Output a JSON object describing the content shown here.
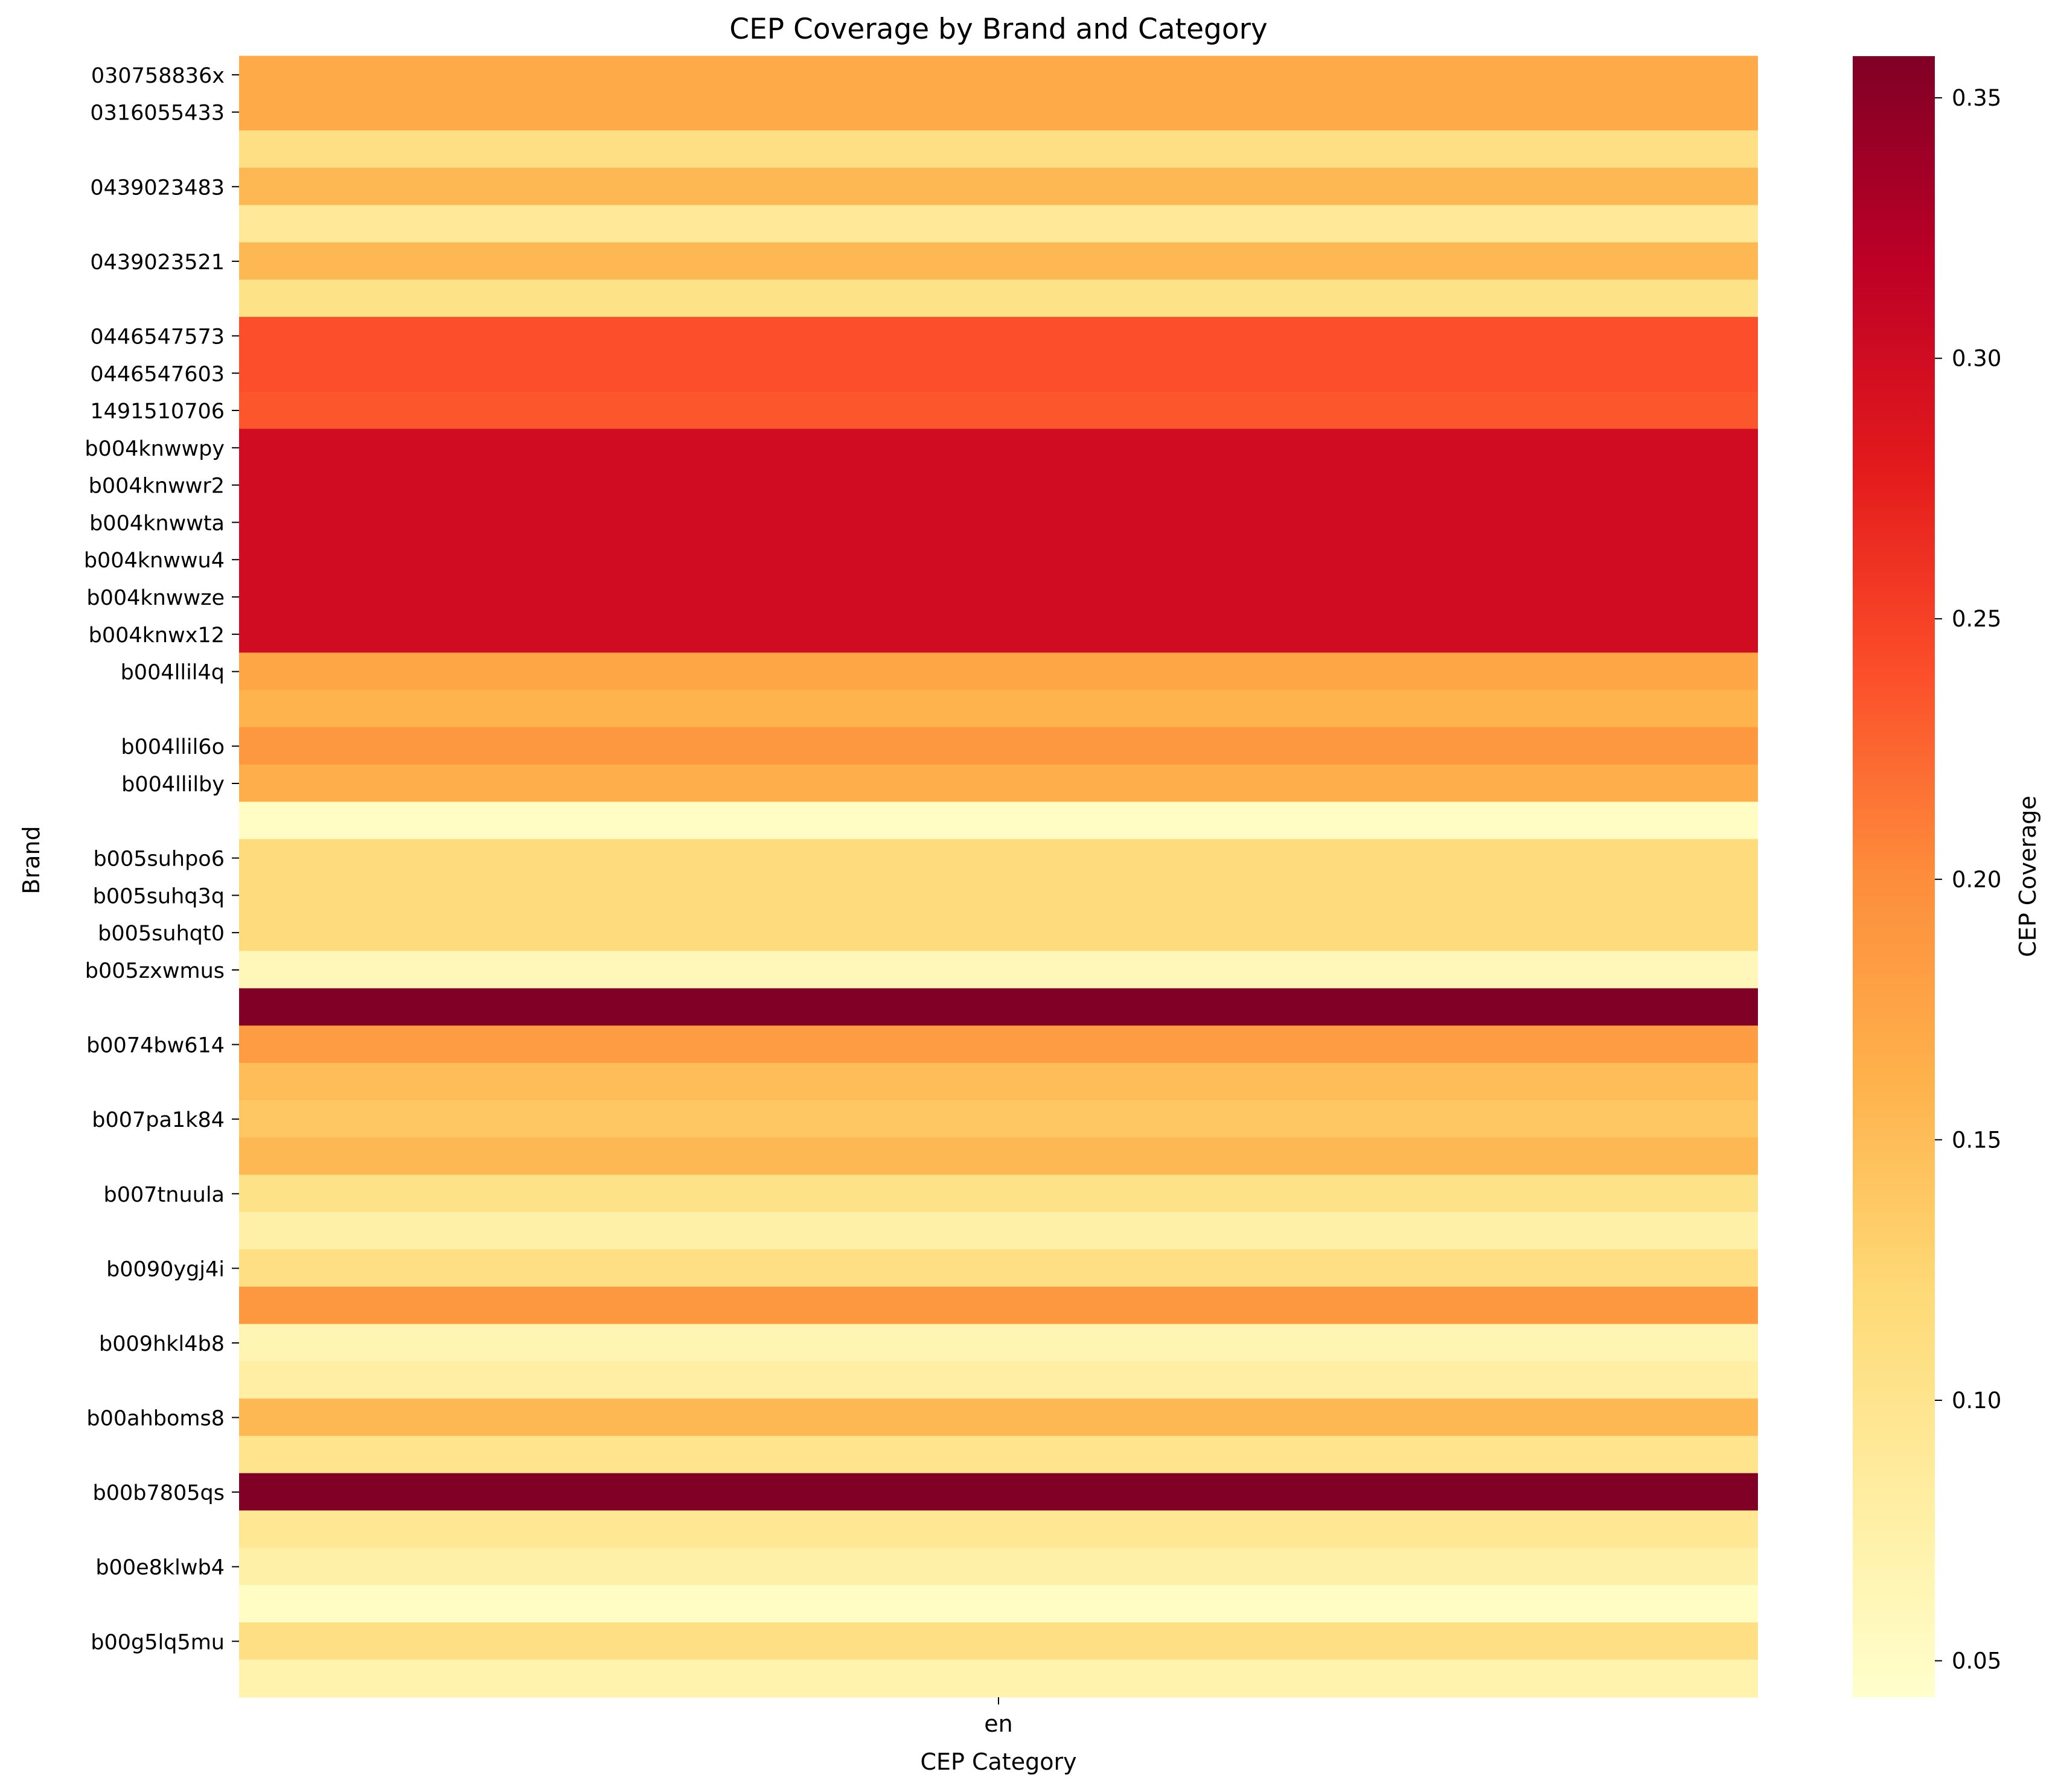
{
  "chart_data": {
    "type": "heatmap",
    "title": "CEP Coverage by Brand and Category",
    "xlabel": "CEP Category",
    "ylabel": "Brand",
    "colorbar_label": "CEP Coverage",
    "colormap": "YlOrRd",
    "color_range": [
      0.043,
      0.358
    ],
    "colorbar_ticks": [
      "0.05",
      "0.10",
      "0.15",
      "0.20",
      "0.25",
      "0.30",
      "0.35"
    ],
    "columns": [
      "en"
    ],
    "rows": [
      {
        "brand": "030758836x",
        "value": 0.17
      },
      {
        "brand": "0316055433",
        "value": 0.17
      },
      {
        "brand": "",
        "value": 0.11
      },
      {
        "brand": "0439023483",
        "value": 0.155
      },
      {
        "brand": "",
        "value": 0.09
      },
      {
        "brand": "0439023521",
        "value": 0.155
      },
      {
        "brand": "",
        "value": 0.105
      },
      {
        "brand": "0446547573",
        "value": 0.24
      },
      {
        "brand": "0446547603",
        "value": 0.24
      },
      {
        "brand": "1491510706",
        "value": 0.235
      },
      {
        "brand": "b004knwwpy",
        "value": 0.3
      },
      {
        "brand": "b004knwwr2",
        "value": 0.3
      },
      {
        "brand": "b004knwwta",
        "value": 0.3
      },
      {
        "brand": "b004knwwu4",
        "value": 0.3
      },
      {
        "brand": "b004knwwze",
        "value": 0.3
      },
      {
        "brand": "b004knwx12",
        "value": 0.3
      },
      {
        "brand": "b004llil4q",
        "value": 0.175
      },
      {
        "brand": "",
        "value": 0.16
      },
      {
        "brand": "b004llil6o",
        "value": 0.19
      },
      {
        "brand": "b004llilby",
        "value": 0.165
      },
      {
        "brand": "",
        "value": 0.05
      },
      {
        "brand": "b005suhpo6",
        "value": 0.115
      },
      {
        "brand": "b005suhq3q",
        "value": 0.115
      },
      {
        "brand": "b005suhqt0",
        "value": 0.115
      },
      {
        "brand": "b005zxwmus",
        "value": 0.06
      },
      {
        "brand": "",
        "value": 0.358
      },
      {
        "brand": "b0074bw614",
        "value": 0.185
      },
      {
        "brand": "",
        "value": 0.15
      },
      {
        "brand": "b007pa1k84",
        "value": 0.14
      },
      {
        "brand": "",
        "value": 0.155
      },
      {
        "brand": "b007tnuula",
        "value": 0.105
      },
      {
        "brand": "",
        "value": 0.075
      },
      {
        "brand": "b0090ygj4i",
        "value": 0.11
      },
      {
        "brand": "",
        "value": 0.19
      },
      {
        "brand": "b009hkl4b8",
        "value": 0.065
      },
      {
        "brand": "",
        "value": 0.08
      },
      {
        "brand": "b00ahboms8",
        "value": 0.155
      },
      {
        "brand": "",
        "value": 0.1
      },
      {
        "brand": "b00b7805qs",
        "value": 0.358
      },
      {
        "brand": "",
        "value": 0.095
      },
      {
        "brand": "b00e8klwb4",
        "value": 0.075
      },
      {
        "brand": "",
        "value": 0.05
      },
      {
        "brand": "b00g5lq5mu",
        "value": 0.11
      },
      {
        "brand": "",
        "value": 0.07
      }
    ]
  }
}
